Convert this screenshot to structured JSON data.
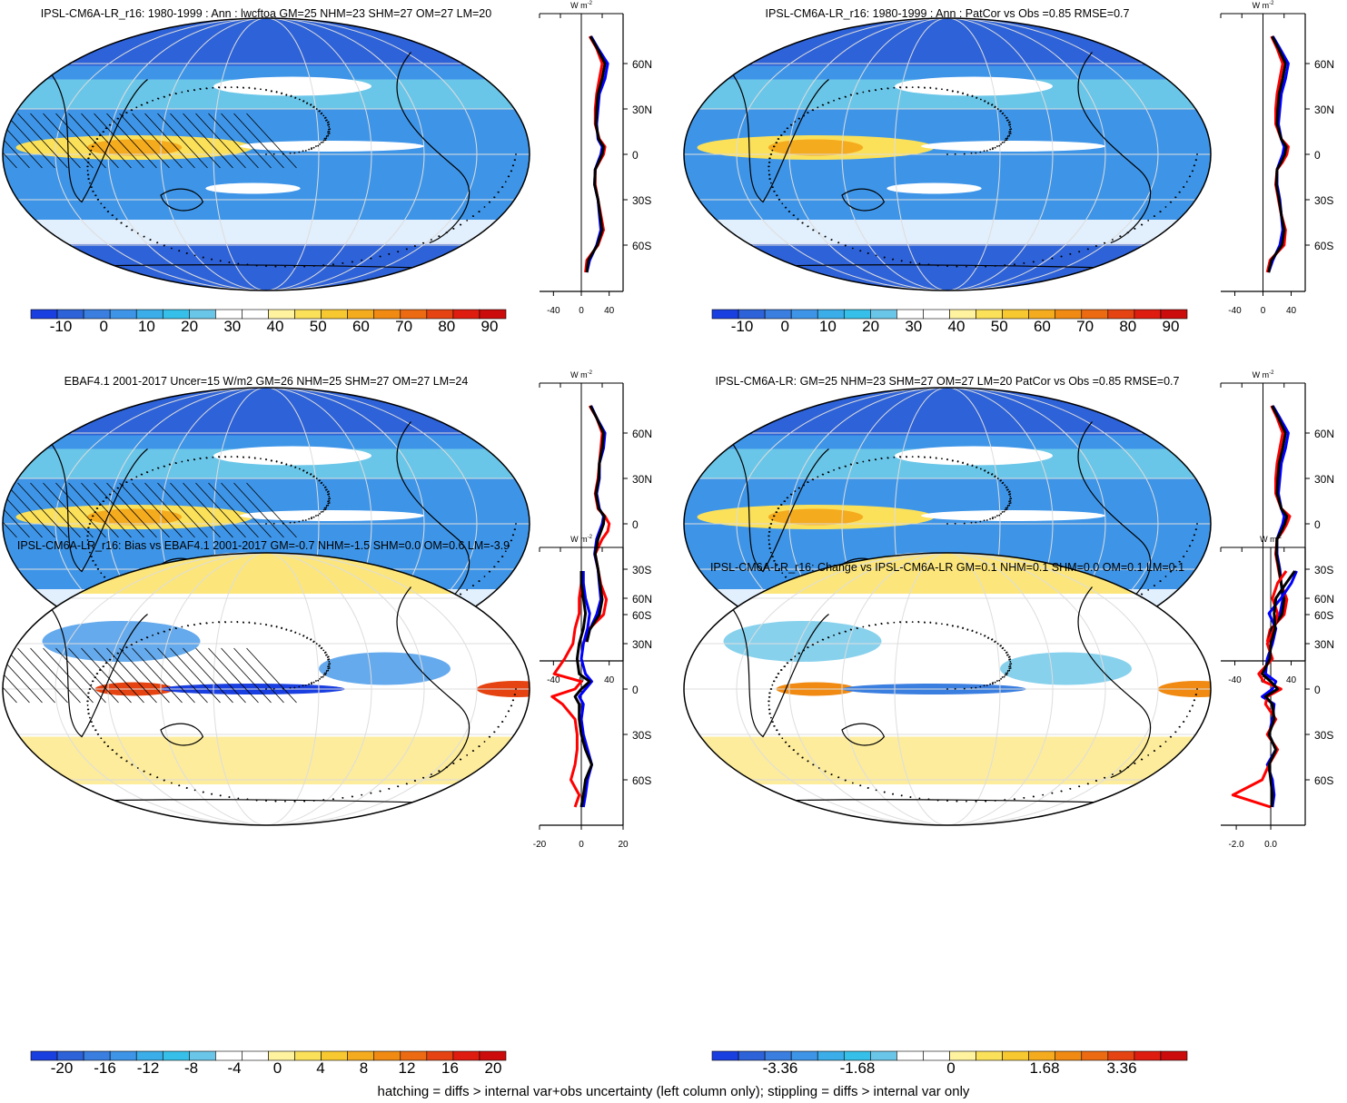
{
  "footer_note": "hatching = diffs > internal var+obs uncertainty (left column only); stippling = diffs > internal var only",
  "colors": {
    "scale": [
      "#2a0dea",
      "#1a3fe0",
      "#2e62d8",
      "#3a7ee0",
      "#3e95e8",
      "#3bade8",
      "#36bfe8",
      "#6ac6e8",
      "#ffffff",
      "#ffffff",
      "#fff3a0",
      "#fbe05a",
      "#f8c830",
      "#f5ab1e",
      "#f08a12",
      "#ec6a12",
      "#e54412",
      "#df1c10",
      "#cc0c0c"
    ],
    "line_model": "#0000ff",
    "line_obs": "#ff0000",
    "line_mean": "#000000"
  },
  "chart_data": [
    {
      "type": "heatmap",
      "panel": "map-top-left",
      "title": "IPSL-CM6A-LR_r16: 1980-1999 : Ann : lwcftoa GM=25 NHM=23 SHM=27 OM=27 LM=20",
      "colorbar_ticks": [
        "-10",
        "0",
        "10",
        "20",
        "30",
        "40",
        "50",
        "60",
        "70",
        "80",
        "90"
      ],
      "zonal_mean": {
        "unit": "W m",
        "unit_exp": "-2",
        "x_ticks": [
          "-40",
          "0",
          "40"
        ],
        "xlim": [
          -60,
          60
        ],
        "lat_ticks": [
          "60N",
          "30N",
          "0",
          "30S",
          "60S"
        ],
        "lat": [
          -78,
          -70,
          -60,
          -50,
          -40,
          -30,
          -20,
          -10,
          -5,
          0,
          5,
          10,
          20,
          30,
          40,
          50,
          60,
          70,
          78
        ],
        "series": [
          {
            "values": [
              8,
              12,
              22,
              28,
              26,
              24,
              19,
              20,
              24,
              28,
              30,
              24,
              22,
              24,
              26,
              34,
              38,
              24,
              14
            ]
          },
          {
            "values": [
              6,
              8,
              24,
              32,
              28,
              24,
              20,
              20,
              26,
              32,
              34,
              26,
              20,
              20,
              22,
              26,
              30,
              22,
              12
            ]
          },
          {
            "values": [
              8,
              10,
              23,
              30,
              27,
              24,
              19,
              20,
              25,
              30,
              32,
              25,
              21,
              22,
              24,
              30,
              34,
              23,
              13
            ]
          }
        ]
      }
    },
    {
      "type": "heatmap",
      "panel": "map-top-right",
      "title": "IPSL-CM6A-LR_r16: 1980-1999 : Ann : PatCor vs Obs =0.85 RMSE=0.7",
      "colorbar_ticks": [
        "-10",
        "0",
        "10",
        "20",
        "30",
        "40",
        "50",
        "60",
        "70",
        "80",
        "90"
      ],
      "zonal_mean": {
        "unit": "W m",
        "unit_exp": "-2",
        "x_ticks": [
          "-40",
          "0",
          "40"
        ],
        "xlim": [
          -60,
          60
        ],
        "lat_ticks": [
          "60N",
          "30N",
          "0",
          "30S",
          "60S"
        ],
        "lat": [
          -78,
          -70,
          -60,
          -50,
          -40,
          -30,
          -20,
          -10,
          -5,
          0,
          5,
          10,
          20,
          30,
          40,
          50,
          60,
          70,
          78
        ],
        "series": [
          {
            "values": [
              8,
              14,
              24,
              28,
              26,
              24,
              20,
              20,
              24,
              28,
              30,
              26,
              22,
              24,
              26,
              32,
              36,
              24,
              14
            ]
          },
          {
            "values": [
              6,
              10,
              30,
              32,
              26,
              22,
              18,
              20,
              28,
              34,
              36,
              26,
              18,
              18,
              20,
              24,
              28,
              20,
              12
            ]
          },
          {
            "values": [
              8,
              12,
              27,
              30,
              26,
              23,
              19,
              20,
              26,
              31,
              33,
              26,
              20,
              21,
              23,
              28,
              32,
              22,
              13
            ]
          }
        ]
      }
    },
    {
      "type": "heatmap",
      "panel": "map-middle-left",
      "title": "EBAF4.1 2001-2017 Uncer=15 W/m2 GM=26 NHM=25 SHM=27 OM=27 LM=24",
      "colorbar_ticks": [
        "-10",
        "0",
        "10",
        "20",
        "30",
        "40",
        "50",
        "60",
        "70",
        "80",
        "90"
      ],
      "zonal_mean": {
        "unit": "W m",
        "unit_exp": "-2",
        "x_ticks": [
          "-40",
          "0",
          "40"
        ],
        "xlim": [
          -60,
          60
        ],
        "lat_ticks": [
          "60N",
          "30N",
          "0",
          "30S",
          "60S"
        ],
        "lat": [
          -78,
          -70,
          -60,
          -50,
          -40,
          -30,
          -20,
          -10,
          -5,
          0,
          5,
          10,
          20,
          30,
          40,
          50,
          60,
          70,
          78
        ],
        "series": [
          {
            "values": [
              8,
              12,
              22,
              28,
              26,
              24,
              19,
              22,
              26,
              30,
              32,
              26,
              22,
              26,
              26,
              32,
              34,
              22,
              14
            ]
          },
          {
            "values": [
              6,
              10,
              32,
              36,
              28,
              24,
              20,
              30,
              38,
              40,
              34,
              24,
              20,
              24,
              26,
              28,
              30,
              22,
              12
            ]
          },
          {
            "values": [
              8,
              12,
              26,
              30,
              27,
              24,
              20,
              24,
              28,
              32,
              33,
              25,
              21,
              25,
              26,
              30,
              32,
              22,
              13
            ]
          }
        ]
      }
    },
    {
      "type": "heatmap",
      "panel": "map-middle-right",
      "title": "IPSL-CM6A-LR: GM=25 NHM=23 SHM=27 OM=27 LM=20 PatCor vs Obs =0.85 RMSE=0.7",
      "colorbar_ticks": [
        "-10",
        "0",
        "10",
        "20",
        "30",
        "40",
        "50",
        "60",
        "70",
        "80",
        "90"
      ],
      "zonal_mean": {
        "unit": "W m",
        "unit_exp": "-2",
        "x_ticks": [
          "-40",
          "0",
          "40"
        ],
        "xlim": [
          -60,
          60
        ],
        "lat_ticks": [
          "60N",
          "30N",
          "0",
          "30S",
          "60S"
        ],
        "lat": [
          -78,
          -70,
          -60,
          -50,
          -40,
          -30,
          -20,
          -10,
          -5,
          0,
          5,
          10,
          20,
          30,
          40,
          50,
          60,
          70,
          78
        ],
        "series": [
          {
            "values": [
              8,
              14,
              24,
              28,
              26,
              24,
              20,
              20,
              24,
              28,
              30,
              26,
              22,
              24,
              26,
              32,
              36,
              24,
              14
            ]
          },
          {
            "values": [
              6,
              10,
              30,
              34,
              26,
              22,
              18,
              20,
              28,
              34,
              38,
              26,
              18,
              18,
              20,
              24,
              28,
              20,
              12
            ]
          },
          {
            "values": [
              8,
              12,
              27,
              30,
              26,
              23,
              19,
              20,
              26,
              31,
              34,
              26,
              20,
              21,
              23,
              28,
              32,
              22,
              13
            ]
          }
        ]
      }
    },
    {
      "type": "heatmap",
      "panel": "map-bottom-left",
      "title": "IPSL-CM6A-LR_r16: Bias vs EBAF4.1 2001-2017 GM=-0.7 NHM=-1.5 SHM=0.0 OM=0.6 LM=-3.9",
      "colorbar_ticks": [
        "-20",
        "-16",
        "-12",
        "-8",
        "-4",
        "0",
        "4",
        "8",
        "12",
        "16",
        "20"
      ],
      "zonal_mean": {
        "unit": "W m",
        "unit_exp": "-2",
        "x_ticks": [
          "-20",
          "0",
          "20"
        ],
        "xlim": [
          -20,
          20
        ],
        "lat_ticks": [
          "60N",
          "30N",
          "0",
          "30S",
          "60S"
        ],
        "lat": [
          -78,
          -70,
          -60,
          -50,
          -40,
          -30,
          -20,
          -10,
          -5,
          0,
          5,
          10,
          20,
          30,
          40,
          50,
          60,
          70,
          78
        ],
        "series": [
          {
            "values": [
              1,
              2,
              3,
              5,
              3,
              1,
              0,
              1,
              -1,
              2,
              5,
              2,
              0,
              1,
              3,
              4,
              2,
              1,
              1
            ]
          },
          {
            "values": [
              -3,
              -1,
              -5,
              -3,
              -2,
              -2,
              -3,
              -9,
              -14,
              -3,
              0,
              -13,
              -8,
              -4,
              -3,
              -1,
              -1,
              0,
              0
            ]
          },
          {
            "values": [
              0,
              1,
              2,
              5,
              2,
              0,
              -1,
              -1,
              -3,
              0,
              4,
              -1,
              -2,
              -1,
              1,
              2,
              1,
              0,
              0
            ]
          }
        ]
      }
    },
    {
      "type": "heatmap",
      "panel": "map-bottom-right",
      "title": "IPSL-CM6A-LR_r16: Change vs IPSL-CM6A-LR GM=0.1 NHM=0.1 SHM=0.0 OM=0.1 LM=0.1",
      "colorbar_ticks": [
        "-3.36",
        "-1.68",
        "0",
        "1.68",
        "3.36"
      ],
      "zonal_mean": {
        "unit": "W m",
        "unit_exp": "-2",
        "x_ticks": [
          "-2.0",
          "0.0"
        ],
        "xlim": [
          -2.9,
          2.0
        ],
        "lat_ticks": [
          "60N",
          "30N",
          "0",
          "30S",
          "60S"
        ],
        "lat": [
          -78,
          -70,
          -60,
          -50,
          -40,
          -30,
          -20,
          -10,
          -5,
          0,
          5,
          10,
          20,
          30,
          40,
          50,
          60,
          70,
          78
        ],
        "series": [
          {
            "values": [
              0.1,
              0.2,
              0.1,
              -0.2,
              0.3,
              -0.1,
              0.1,
              0.2,
              -0.5,
              0.1,
              0.3,
              -0.3,
              -0.2,
              0.1,
              0.3,
              -0.1,
              0.6,
              1.2,
              1.5
            ]
          },
          {
            "values": [
              0.0,
              -2.2,
              -0.5,
              -0.1,
              0.4,
              -0.2,
              0.3,
              -0.3,
              -0.2,
              0.6,
              -0.4,
              -0.7,
              0.1,
              -0.2,
              0.2,
              0.4,
              0.1,
              0.4,
              0.9
            ]
          },
          {
            "values": [
              0.05,
              0.1,
              0.0,
              -0.1,
              0.3,
              -0.1,
              0.2,
              0.1,
              -0.3,
              0.4,
              0.0,
              -0.5,
              -0.05,
              0.0,
              0.25,
              0.2,
              0.3,
              0.9,
              1.4
            ]
          }
        ]
      }
    }
  ]
}
